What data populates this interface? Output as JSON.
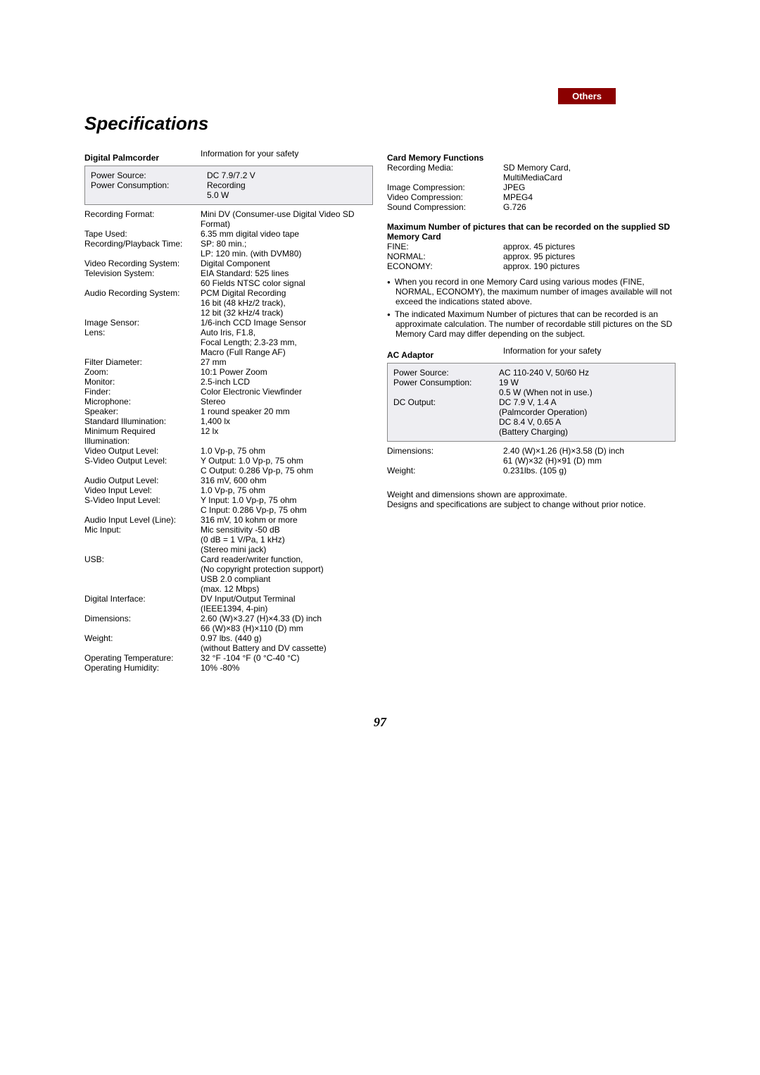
{
  "tab_label": "Others",
  "title": "Specifications",
  "page_number": "97",
  "left": {
    "header_label": "Digital Palmcorder",
    "header_value": "Information for your safety",
    "box_rows": [
      {
        "label": "Power Source:",
        "value": "DC 7.9/7.2 V"
      },
      {
        "label": "Power Consumption:",
        "value": "Recording\n5.0 W"
      }
    ],
    "rows": [
      {
        "label": "Recording Format:",
        "value": "Mini DV (Consumer-use Digital Video SD Format)"
      },
      {
        "label": "Tape Used:",
        "value": "6.35 mm digital video tape"
      },
      {
        "label": "Recording/Playback Time:",
        "value": "SP: 80 min.;\nLP: 120 min. (with DVM80)"
      },
      {
        "label": "Video Recording System:",
        "value": "Digital Component"
      },
      {
        "label": "Television System:",
        "value": "EIA Standard: 525 lines\n60 Fields NTSC color signal"
      },
      {
        "label": "Audio Recording System:",
        "value": "PCM Digital Recording\n16 bit (48 kHz/2 track),\n12 bit (32 kHz/4 track)"
      },
      {
        "label": "Image Sensor:",
        "value": "1/6-inch CCD Image Sensor"
      },
      {
        "label": "Lens:",
        "value": "Auto Iris, F1.8,\nFocal Length; 2.3-23 mm,\nMacro (Full Range AF)"
      },
      {
        "label": "Filter Diameter:",
        "value": "27 mm"
      },
      {
        "label": "Zoom:",
        "value": "10:1 Power Zoom"
      },
      {
        "label": "Monitor:",
        "value": "2.5-inch LCD"
      },
      {
        "label": "Finder:",
        "value": "Color Electronic Viewfinder"
      },
      {
        "label": "Microphone:",
        "value": "Stereo"
      },
      {
        "label": "Speaker:",
        "value": "1 round speaker 20 mm"
      },
      {
        "label": "Standard Illumination:",
        "value": "1,400 lx"
      },
      {
        "label": "Minimum Required Illumination:",
        "value": "12 lx"
      },
      {
        "label": "Video Output Level:",
        "value": "1.0 Vp-p, 75 ohm"
      },
      {
        "label": "S-Video Output Level:",
        "value": "Y Output: 1.0 Vp-p, 75 ohm\nC Output: 0.286 Vp-p, 75 ohm"
      },
      {
        "label": "Audio Output Level:",
        "value": "316 mV, 600 ohm"
      },
      {
        "label": "Video Input Level:",
        "value": "1.0 Vp-p, 75 ohm"
      },
      {
        "label": "S-Video Input Level:",
        "value": "Y Input: 1.0 Vp-p, 75 ohm\nC Input: 0.286 Vp-p, 75 ohm"
      },
      {
        "label": "Audio Input Level (Line):",
        "value": "316 mV, 10 kohm or more"
      },
      {
        "label": "Mic Input:",
        "value": "Mic sensitivity -50 dB\n(0 dB = 1 V/Pa, 1 kHz)\n(Stereo mini jack)"
      },
      {
        "label": "USB:",
        "value": "Card reader/writer function,\n(No copyright protection support)\nUSB 2.0 compliant\n(max. 12 Mbps)"
      },
      {
        "label": "Digital Interface:",
        "value": "DV Input/Output Terminal\n(IEEE1394, 4-pin)"
      },
      {
        "label": "Dimensions:",
        "value": "2.60 (W)×3.27 (H)×4.33 (D) inch\n66 (W)×83 (H)×110 (D) mm"
      },
      {
        "label": "Weight:",
        "value": "0.97 lbs. (440 g)\n(without Battery and DV cassette)"
      },
      {
        "label": "Operating Temperature:",
        "value": "32 °F -104 °F (0 °C-40 °C)"
      },
      {
        "label": "Operating Humidity:",
        "value": "10% -80%"
      }
    ]
  },
  "right": {
    "card_header": "Card Memory Functions",
    "card_rows": [
      {
        "label": "Recording Media:",
        "value": "SD Memory Card,\nMultiMediaCard"
      },
      {
        "label": "Image Compression:",
        "value": "JPEG"
      },
      {
        "label": "Video Compression:",
        "value": "MPEG4"
      },
      {
        "label": "Sound Compression:",
        "value": "G.726"
      }
    ],
    "max_header": "Maximum Number of pictures that can be recorded on the supplied SD Memory Card",
    "max_rows": [
      {
        "label": "FINE:",
        "value": "approx. 45 pictures"
      },
      {
        "label": "NORMAL:",
        "value": "approx. 95 pictures"
      },
      {
        "label": "ECONOMY:",
        "value": "approx. 190 pictures"
      }
    ],
    "bullets": [
      "When you record in one Memory Card using various modes (FINE, NORMAL, ECONOMY), the maximum number of images available will not exceed the indications stated above.",
      "The indicated Maximum Number of pictures that can be recorded is an approximate calculation. The number of recordable still pictures on the SD Memory Card may differ depending on the subject."
    ],
    "ac_header_label": "AC Adaptor",
    "ac_header_value": "Information for your safety",
    "ac_box_rows": [
      {
        "label": "Power Source:",
        "value": "AC 110-240 V, 50/60 Hz"
      },
      {
        "label": "Power Consumption:",
        "value": "19 W\n0.5 W (When not in use.)"
      },
      {
        "label": "DC Output:",
        "value": "DC 7.9 V, 1.4 A\n(Palmcorder Operation)\nDC 8.4 V, 0.65 A\n(Battery Charging)"
      }
    ],
    "ac_rows": [
      {
        "label": "Dimensions:",
        "value": "2.40 (W)×1.26 (H)×3.58 (D) inch\n61 (W)×32 (H)×91 (D) mm"
      },
      {
        "label": "Weight:",
        "value": "0.231lbs. (105 g)"
      }
    ],
    "footer_note": "Weight and dimensions shown are approximate.\nDesigns and specifications are subject to change without prior notice."
  }
}
